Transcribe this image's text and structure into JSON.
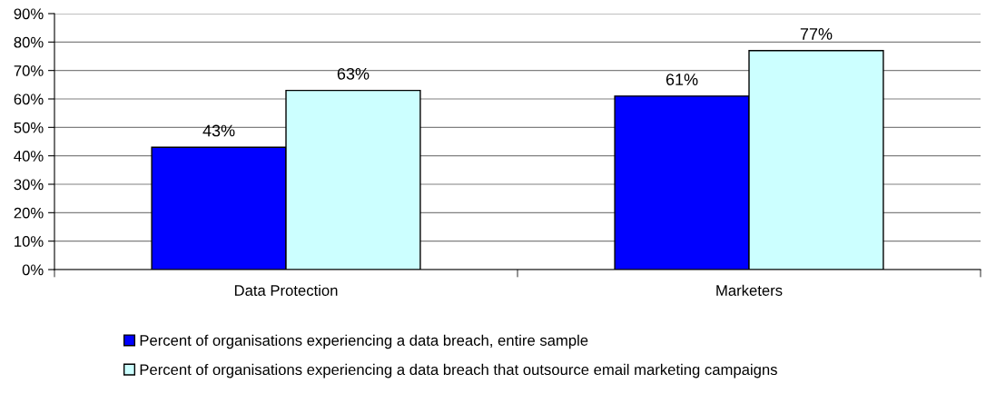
{
  "chart_data": {
    "type": "bar",
    "categories": [
      "Data Protection",
      "Marketers"
    ],
    "series": [
      {
        "name": "Percent of organisations experiencing a data breach, entire sample",
        "color": "#0000ff",
        "values": [
          43,
          61
        ],
        "value_labels": [
          "43%",
          "61%"
        ]
      },
      {
        "name": "Percent of organisations experiencing a data breach that outsource email marketing campaigns",
        "color": "#ccffff",
        "values": [
          63,
          77
        ],
        "value_labels": [
          "63%",
          "77%"
        ]
      }
    ],
    "ylim": [
      0,
      90
    ],
    "yticks": [
      {
        "value": 0,
        "label": "0%"
      },
      {
        "value": 10,
        "label": "10%"
      },
      {
        "value": 20,
        "label": "20%"
      },
      {
        "value": 30,
        "label": "30%"
      },
      {
        "value": 40,
        "label": "40%"
      },
      {
        "value": 50,
        "label": "50%"
      },
      {
        "value": 60,
        "label": "60%"
      },
      {
        "value": 70,
        "label": "70%"
      },
      {
        "value": 80,
        "label": "80%"
      },
      {
        "value": 90,
        "label": "90%"
      }
    ],
    "grid": "y",
    "legend": "bottom"
  }
}
